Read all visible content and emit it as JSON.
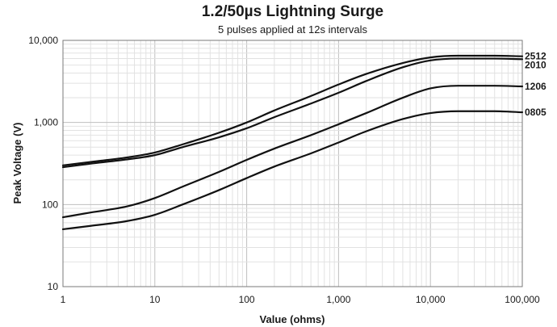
{
  "chart_data": {
    "type": "line",
    "title": "1.2/50µs Lightning Surge",
    "subtitle": "5 pulses applied at 12s intervals",
    "xlabel": "Value (ohms)",
    "ylabel": "Peak Voltage (V)",
    "xscale": "log",
    "yscale": "log",
    "xlim": [
      1,
      100000
    ],
    "ylim": [
      10,
      10000
    ],
    "grid": true,
    "legend": "series labels at right end of lines",
    "xticks": [
      {
        "value": 1,
        "label": "1"
      },
      {
        "value": 10,
        "label": "10"
      },
      {
        "value": 100,
        "label": "100"
      },
      {
        "value": 1000,
        "label": "1,000"
      },
      {
        "value": 10000,
        "label": "10,000"
      },
      {
        "value": 100000,
        "label": "100,000"
      }
    ],
    "yticks": [
      {
        "value": 10,
        "label": "10"
      },
      {
        "value": 100,
        "label": "100"
      },
      {
        "value": 1000,
        "label": "1,000"
      },
      {
        "value": 10000,
        "label": "10,000"
      }
    ],
    "x": [
      1,
      2,
      5,
      10,
      20,
      50,
      100,
      200,
      500,
      1000,
      2000,
      5000,
      10000,
      20000,
      50000,
      100000
    ],
    "series": [
      {
        "name": "2512",
        "values": [
          300,
          330,
          375,
          430,
          540,
          750,
          1000,
          1400,
          2100,
          2900,
          3900,
          5300,
          6200,
          6500,
          6500,
          6400
        ]
      },
      {
        "name": "2010",
        "values": [
          285,
          315,
          355,
          400,
          500,
          660,
          850,
          1160,
          1700,
          2300,
          3200,
          4700,
          5700,
          6000,
          6000,
          5900
        ]
      },
      {
        "name": "1206",
        "values": [
          70,
          80,
          95,
          120,
          165,
          250,
          350,
          480,
          700,
          950,
          1300,
          2000,
          2600,
          2800,
          2800,
          2750
        ]
      },
      {
        "name": "0805",
        "values": [
          50,
          55,
          63,
          75,
          100,
          150,
          210,
          290,
          420,
          570,
          780,
          1100,
          1300,
          1370,
          1370,
          1330
        ]
      }
    ]
  }
}
